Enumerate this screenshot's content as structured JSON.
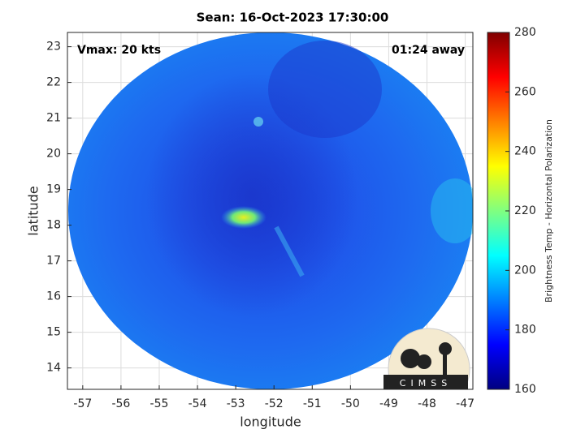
{
  "chart_data": {
    "type": "image",
    "title": "Sean: 16-Oct-2023 17:30:00",
    "xlabel": "longitude",
    "ylabel": "latitude",
    "xlim": [
      -57.4,
      -46.8
    ],
    "ylim": [
      13.4,
      23.4
    ],
    "xticks": [
      -57,
      -56,
      -55,
      -54,
      -53,
      -52,
      -51,
      -50,
      -49,
      -48,
      -47
    ],
    "yticks": [
      14,
      15,
      16,
      17,
      18,
      19,
      20,
      21,
      22,
      23
    ],
    "grid": true,
    "annotations": [
      "Vmax: 20 kts",
      "01:24 away"
    ],
    "logo_text": "CIMSS",
    "colorbar": {
      "label": "Brightness Temp - Horizontal Polarization",
      "colormap": "jet",
      "clim": [
        160,
        280
      ],
      "ticks": [
        160,
        180,
        200,
        220,
        240,
        260,
        280
      ]
    }
  }
}
